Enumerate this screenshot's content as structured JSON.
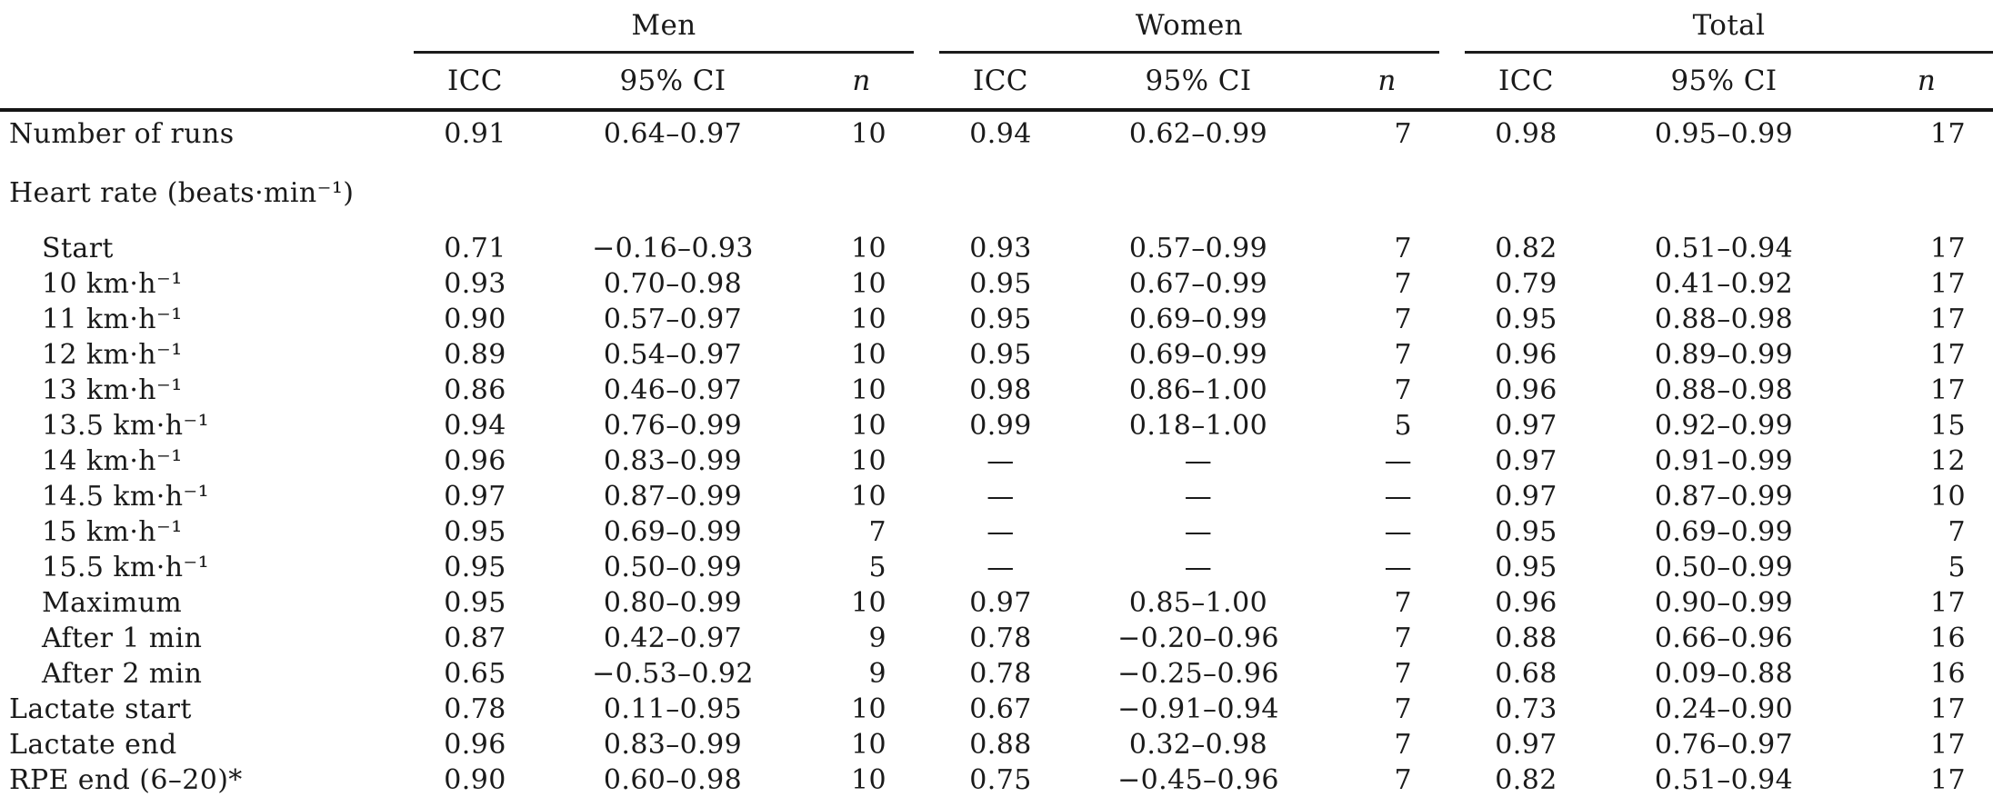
{
  "table": {
    "groups": [
      {
        "label": "Men"
      },
      {
        "label": "Women"
      },
      {
        "label": "Total"
      }
    ],
    "sub_headers": {
      "icc": "ICC",
      "ci": "95% CI",
      "n": "n"
    },
    "rows": [
      {
        "label": "Number of runs",
        "type": "data",
        "cells": [
          "0.91",
          "0.64–0.97",
          "10",
          "0.94",
          "0.62–0.99",
          "7",
          "0.98",
          "0.95–0.99",
          "17"
        ]
      },
      {
        "label": "Heart rate (beats·min⁻¹)",
        "type": "section",
        "cells": [
          "",
          "",
          "",
          "",
          "",
          "",
          "",
          "",
          ""
        ]
      },
      {
        "label": "Start",
        "type": "indent",
        "cells": [
          "0.71",
          "−0.16–0.93",
          "10",
          "0.93",
          "0.57–0.99",
          "7",
          "0.82",
          "0.51–0.94",
          "17"
        ]
      },
      {
        "label": "10 km·h⁻¹",
        "type": "indent",
        "cells": [
          "0.93",
          "0.70–0.98",
          "10",
          "0.95",
          "0.67–0.99",
          "7",
          "0.79",
          "0.41–0.92",
          "17"
        ]
      },
      {
        "label": "11 km·h⁻¹",
        "type": "indent",
        "cells": [
          "0.90",
          "0.57–0.97",
          "10",
          "0.95",
          "0.69–0.99",
          "7",
          "0.95",
          "0.88–0.98",
          "17"
        ]
      },
      {
        "label": "12 km·h⁻¹",
        "type": "indent",
        "cells": [
          "0.89",
          "0.54–0.97",
          "10",
          "0.95",
          "0.69–0.99",
          "7",
          "0.96",
          "0.89–0.99",
          "17"
        ]
      },
      {
        "label": "13 km·h⁻¹",
        "type": "indent",
        "cells": [
          "0.86",
          "0.46–0.97",
          "10",
          "0.98",
          "0.86–1.00",
          "7",
          "0.96",
          "0.88–0.98",
          "17"
        ]
      },
      {
        "label": "13.5 km·h⁻¹",
        "type": "indent",
        "cells": [
          "0.94",
          "0.76–0.99",
          "10",
          "0.99",
          "0.18–1.00",
          "5",
          "0.97",
          "0.92–0.99",
          "15"
        ]
      },
      {
        "label": "14 km·h⁻¹",
        "type": "indent",
        "cells": [
          "0.96",
          "0.83–0.99",
          "10",
          "—",
          "—",
          "—",
          "0.97",
          "0.91–0.99",
          "12"
        ]
      },
      {
        "label": "14.5 km·h⁻¹",
        "type": "indent",
        "cells": [
          "0.97",
          "0.87–0.99",
          "10",
          "—",
          "—",
          "—",
          "0.97",
          "0.87–0.99",
          "10"
        ]
      },
      {
        "label": "15 km·h⁻¹",
        "type": "indent",
        "cells": [
          "0.95",
          "0.69–0.99",
          "7",
          "—",
          "—",
          "—",
          "0.95",
          "0.69–0.99",
          "7"
        ]
      },
      {
        "label": "15.5 km·h⁻¹",
        "type": "indent",
        "cells": [
          "0.95",
          "0.50–0.99",
          "5",
          "—",
          "—",
          "—",
          "0.95",
          "0.50–0.99",
          "5"
        ]
      },
      {
        "label": "Maximum",
        "type": "indent",
        "cells": [
          "0.95",
          "0.80–0.99",
          "10",
          "0.97",
          "0.85–1.00",
          "7",
          "0.96",
          "0.90–0.99",
          "17"
        ]
      },
      {
        "label": "After 1 min",
        "type": "indent",
        "cells": [
          "0.87",
          "0.42–0.97",
          "9",
          "0.78",
          "−0.20–0.96",
          "7",
          "0.88",
          "0.66–0.96",
          "16"
        ]
      },
      {
        "label": "After 2 min",
        "type": "indent",
        "cells": [
          "0.65",
          "−0.53–0.92",
          "9",
          "0.78",
          "−0.25–0.96",
          "7",
          "0.68",
          "0.09–0.88",
          "16"
        ]
      },
      {
        "label": "Lactate start",
        "type": "data",
        "cells": [
          "0.78",
          "0.11–0.95",
          "10",
          "0.67",
          "−0.91–0.94",
          "7",
          "0.73",
          "0.24–0.90",
          "17"
        ]
      },
      {
        "label": "Lactate end",
        "type": "data",
        "cells": [
          "0.96",
          "0.83–0.99",
          "10",
          "0.88",
          "0.32–0.98",
          "7",
          "0.97",
          "0.76–0.97",
          "17"
        ]
      },
      {
        "label": "RPE end (6–20)*",
        "type": "data",
        "cells": [
          "0.90",
          "0.60–0.98",
          "10",
          "0.75",
          "−0.45–0.96",
          "7",
          "0.82",
          "0.51–0.94",
          "17"
        ]
      }
    ]
  }
}
